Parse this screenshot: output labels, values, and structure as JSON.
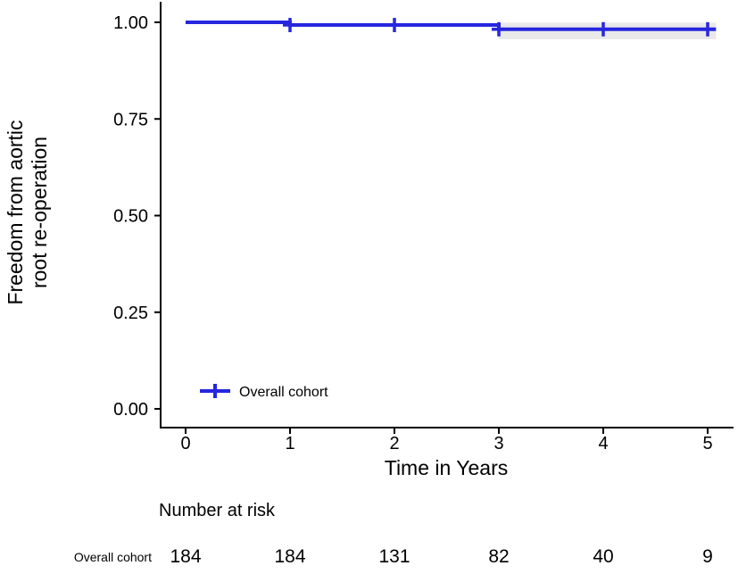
{
  "chart_data": {
    "type": "line",
    "curve_type": "kaplan-meier-step",
    "title": "",
    "xlabel": "Time in Years",
    "ylabel": "Freedom from aortic root re-operation",
    "ylabel_lines": [
      "Freedom from aortic",
      "root re-operation"
    ],
    "xlim": [
      0,
      5
    ],
    "ylim": [
      0,
      1
    ],
    "grid": false,
    "axis_color": "#000000",
    "xticks": [
      {
        "v": 0,
        "label": "0"
      },
      {
        "v": 1,
        "label": "1"
      },
      {
        "v": 2,
        "label": "2"
      },
      {
        "v": 3,
        "label": "3"
      },
      {
        "v": 4,
        "label": "4"
      },
      {
        "v": 5,
        "label": "5"
      }
    ],
    "yticks": [
      {
        "v": 0.0,
        "label": "0.00"
      },
      {
        "v": 0.25,
        "label": "0.25"
      },
      {
        "v": 0.5,
        "label": "0.50"
      },
      {
        "v": 0.75,
        "label": "0.75"
      },
      {
        "v": 1.0,
        "label": "1.00"
      }
    ],
    "legend": {
      "position": "inside-bottom-left",
      "entries": [
        {
          "label": "Overall cohort",
          "color": "#2626DF"
        }
      ]
    },
    "series": [
      {
        "name": "Overall cohort",
        "color": "#2626DF",
        "ci_color": "#E9E9E9",
        "steps": [
          {
            "t": 0,
            "s": 1.0
          },
          {
            "t": 1,
            "s": 0.993
          },
          {
            "t": 3,
            "s": 0.982
          }
        ],
        "end_t": 5.08,
        "censor_marks": [
          {
            "t": 1,
            "s": 0.993
          },
          {
            "t": 2,
            "s": 0.993
          },
          {
            "t": 3,
            "s": 0.982
          },
          {
            "t": 4,
            "s": 0.982
          },
          {
            "t": 5,
            "s": 0.982
          }
        ],
        "ci_bands": [
          {
            "t0": 1,
            "t1": 3,
            "lo": 0.988,
            "hi": 0.998
          },
          {
            "t0": 3,
            "t1": 5.08,
            "lo": 0.956,
            "hi": 0.999
          }
        ]
      }
    ]
  },
  "risk_table": {
    "title": "Number at risk",
    "time_points": [
      0,
      1,
      2,
      3,
      4,
      5
    ],
    "rows": [
      {
        "label": "Overall cohort",
        "values": [
          "184",
          "184",
          "131",
          "82",
          "40",
          "9"
        ]
      }
    ]
  }
}
